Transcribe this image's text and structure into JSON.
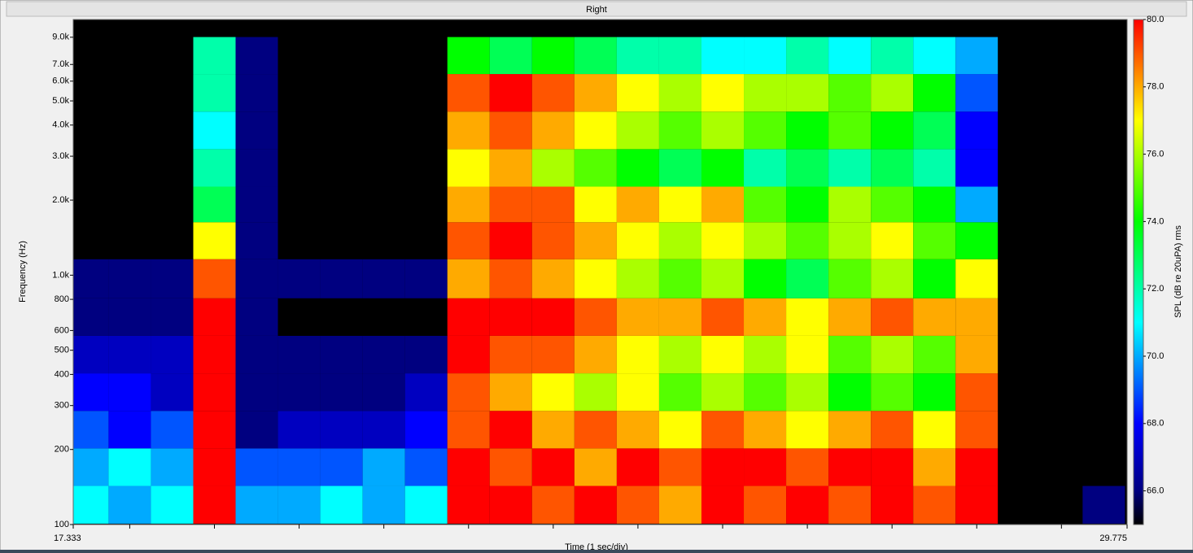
{
  "chart_data": {
    "type": "heatmap",
    "title": "Right",
    "xlabel": "Time (1 sec/div)",
    "ylabel": "Frequency (Hz)",
    "zlabel": "SPL (dB re 20uPA) rms",
    "xlim": [
      17.333,
      29.775
    ],
    "xticks": [
      17.333,
      29.775
    ],
    "x_minor_ticks": [
      18,
      19,
      20,
      21,
      22,
      23,
      24,
      25,
      26,
      27,
      28,
      29
    ],
    "ylim": [
      100,
      10600
    ],
    "yscale": "log",
    "yticks": [
      100,
      200,
      300,
      400,
      500,
      600,
      800,
      {
        "value": 1000,
        "label": "1.0k"
      },
      {
        "value": 2000,
        "label": "2.0k"
      },
      {
        "value": 3000,
        "label": "3.0k"
      },
      {
        "value": 4000,
        "label": "4.0k"
      },
      {
        "value": 5000,
        "label": "5.0k"
      },
      {
        "value": 6000,
        "label": "6.0k"
      },
      {
        "value": 7000,
        "label": "7.0k"
      },
      {
        "value": 9000,
        "label": "9.0k"
      }
    ],
    "zlim": [
      65,
      80
    ],
    "zticks": [
      {
        "value": 66,
        "label": "66.0"
      },
      {
        "value": 68,
        "label": "68.0"
      },
      {
        "value": 70,
        "label": "70.0"
      },
      {
        "value": 72,
        "label": "72.0"
      },
      {
        "value": 74,
        "label": "74.0"
      },
      {
        "value": 76,
        "label": "76.0"
      },
      {
        "value": 78,
        "label": "78.0"
      },
      {
        "value": 80,
        "label": "80.0"
      }
    ],
    "colorscale": [
      [
        65,
        "#000000"
      ],
      [
        66,
        "#000080"
      ],
      [
        68,
        "#0000ff"
      ],
      [
        71,
        "#00ffff"
      ],
      [
        74,
        "#00ff00"
      ],
      [
        77,
        "#ffff00"
      ],
      [
        78.5,
        "#ff8000"
      ],
      [
        80,
        "#ff0000"
      ]
    ],
    "x": [
      17.5,
      18.0,
      18.5,
      19.0,
      19.5,
      20.0,
      20.5,
      21.0,
      21.5,
      22.0,
      22.5,
      23.0,
      23.5,
      24.0,
      24.5,
      25.0,
      25.5,
      26.0,
      26.5,
      27.0,
      27.5,
      28.0,
      28.5,
      29.0,
      29.5
    ],
    "y": [
      120,
      170,
      240,
      340,
      480,
      680,
      960,
      1400,
      1900,
      2700,
      3800,
      5400,
      7600
    ],
    "z": [
      [
        71,
        70,
        69,
        68,
        67,
        66,
        66,
        64,
        64,
        64,
        64,
        64,
        64
      ],
      [
        70,
        71,
        68,
        68,
        67,
        66,
        66,
        64,
        64,
        64,
        64,
        64,
        64
      ],
      [
        71,
        70,
        69,
        67,
        67,
        66,
        66,
        64,
        64,
        64,
        64,
        64,
        64
      ],
      [
        80,
        80,
        80,
        80,
        80,
        80,
        79,
        77,
        73,
        72,
        71,
        72,
        72
      ],
      [
        70,
        69,
        66,
        66,
        66,
        66,
        66,
        66,
        66,
        66,
        66,
        66,
        66
      ],
      [
        70,
        69,
        67,
        66,
        66,
        64,
        66,
        64,
        64,
        64,
        64,
        64,
        64
      ],
      [
        71,
        69,
        67,
        66,
        66,
        64,
        66,
        64,
        64,
        64,
        64,
        64,
        64
      ],
      [
        70,
        70,
        67,
        66,
        66,
        64,
        66,
        64,
        64,
        64,
        64,
        64,
        64
      ],
      [
        71,
        69,
        68,
        67,
        66,
        64,
        66,
        64,
        64,
        64,
        64,
        64,
        64
      ],
      [
        80,
        80,
        79,
        79,
        80,
        80,
        78,
        79,
        78,
        77,
        78,
        79,
        74
      ],
      [
        80,
        79,
        80,
        78,
        79,
        80,
        79,
        80,
        79,
        78,
        79,
        80,
        73
      ],
      [
        79,
        80,
        78,
        77,
        79,
        80,
        78,
        79,
        79,
        76,
        78,
        79,
        74
      ],
      [
        80,
        78,
        79,
        76,
        78,
        79,
        77,
        78,
        77,
        75,
        77,
        78,
        73
      ],
      [
        79,
        80,
        78,
        77,
        77,
        78,
        76,
        77,
        78,
        74,
        76,
        77,
        72
      ],
      [
        78,
        79,
        77,
        75,
        76,
        78,
        75,
        76,
        77,
        73,
        75,
        76,
        72
      ],
      [
        80,
        80,
        79,
        76,
        77,
        79,
        76,
        77,
        78,
        74,
        76,
        77,
        71
      ],
      [
        79,
        80,
        78,
        75,
        76,
        78,
        74,
        76,
        75,
        72,
        75,
        76,
        71
      ],
      [
        80,
        79,
        77,
        76,
        77,
        77,
        73,
        75,
        74,
        73,
        74,
        76,
        72
      ],
      [
        79,
        80,
        78,
        74,
        75,
        78,
        75,
        76,
        76,
        72,
        75,
        75,
        71
      ],
      [
        80,
        80,
        79,
        75,
        76,
        79,
        76,
        77,
        75,
        73,
        74,
        76,
        72
      ],
      [
        79,
        78,
        77,
        74,
        75,
        78,
        74,
        75,
        74,
        72,
        73,
        74,
        71
      ],
      [
        80,
        80,
        79,
        79,
        78,
        78,
        77,
        74,
        70,
        68,
        68,
        69,
        70
      ],
      [
        64,
        64,
        64,
        64,
        64,
        64,
        64,
        64,
        64,
        64,
        64,
        64,
        64
      ],
      [
        64,
        64,
        64,
        64,
        64,
        64,
        64,
        64,
        64,
        64,
        64,
        64,
        64
      ],
      [
        66,
        64,
        64,
        64,
        64,
        64,
        64,
        64,
        64,
        64,
        64,
        64,
        64
      ]
    ]
  }
}
